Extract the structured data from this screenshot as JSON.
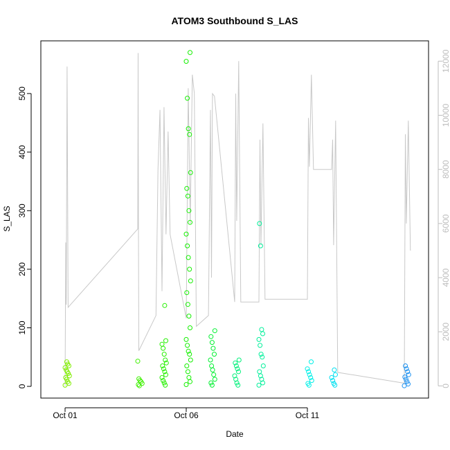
{
  "chart_data": {
    "type": "scatter",
    "title": "ATOM3 Southbound S_LAS",
    "xlabel": "Date",
    "ylabel": "S_LAS",
    "x_axis_type": "date",
    "x_range": [
      "2019-09-30",
      "2019-10-16"
    ],
    "ylim": [
      -20,
      590
    ],
    "y_ticks": [
      0,
      100,
      200,
      300,
      400,
      500
    ],
    "x_ticks": [
      {
        "date": "2019-10-01",
        "label": "Oct 01"
      },
      {
        "date": "2019-10-06",
        "label": "Oct 06"
      },
      {
        "date": "2019-10-11",
        "label": "Oct 11"
      }
    ],
    "secondary_y": {
      "color": "#bdbdbd",
      "ylim": [
        -450,
        12750
      ],
      "ticks": [
        0,
        2000,
        4000,
        6000,
        8000,
        10000,
        12000
      ]
    },
    "grid": false,
    "legend": "none",
    "point_series": [
      {
        "day": "2019-10-01",
        "color": "#80ee00",
        "values": [
          2,
          5,
          8,
          12,
          15,
          18,
          22,
          25,
          28,
          32,
          35,
          38,
          42
        ]
      },
      {
        "day": "2019-10-04",
        "color": "#3ef000",
        "values": [
          1,
          3,
          5,
          8,
          10,
          13,
          43
        ]
      },
      {
        "day": "2019-10-05",
        "color": "#25f000",
        "values": [
          2,
          6,
          10,
          15,
          20,
          25,
          30,
          35,
          40,
          45,
          55,
          65,
          72,
          78,
          138
        ]
      },
      {
        "day": "2019-10-06",
        "color": "#14f000",
        "values": [
          3,
          8,
          15,
          25,
          35,
          45,
          55,
          60,
          70,
          80,
          100,
          120,
          140,
          160,
          180,
          200,
          220,
          240,
          260,
          280,
          300,
          325,
          338,
          365,
          430,
          440,
          492,
          555,
          570
        ]
      },
      {
        "day": "2019-10-07",
        "color": "#00f030",
        "values": [
          2,
          6,
          12,
          20,
          28,
          35,
          45,
          55,
          65,
          75,
          85,
          95
        ]
      },
      {
        "day": "2019-10-08",
        "color": "#00f07a",
        "values": [
          2,
          6,
          12,
          18,
          25,
          30,
          35,
          40,
          45
        ]
      },
      {
        "day": "2019-10-09",
        "color": "#00f09a",
        "values": [
          2,
          6,
          12,
          18,
          25,
          35,
          50,
          55,
          70,
          80,
          90,
          97,
          240,
          278
        ]
      },
      {
        "day": "2019-10-11",
        "color": "#00f0e8",
        "values": [
          2,
          5,
          10,
          15,
          20,
          25,
          30,
          42
        ]
      },
      {
        "day": "2019-10-12",
        "color": "#00e0f0",
        "values": [
          2,
          5,
          10,
          15,
          20,
          28
        ]
      },
      {
        "day": "2019-10-15",
        "color": "#1a90f0",
        "values": [
          1,
          4,
          8,
          12,
          16,
          20,
          25,
          30,
          35
        ]
      }
    ],
    "line_series": {
      "axis": "secondary",
      "color": "#c8c8c8",
      "points": [
        [
          "2019-10-01T00:00",
          0
        ],
        [
          "2019-10-01T00:40",
          5300
        ],
        [
          "2019-10-01T01:10",
          3000
        ],
        [
          "2019-10-01T02:00",
          11800
        ],
        [
          "2019-10-01T03:00",
          2900
        ],
        [
          "2019-10-04T00:00",
          5800
        ],
        [
          "2019-10-04T00:20",
          12300
        ],
        [
          "2019-10-04T00:40",
          5700
        ],
        [
          "2019-10-04T01:00",
          1300
        ],
        [
          "2019-10-04T18:00",
          2600
        ],
        [
          "2019-10-04T20:00",
          8000
        ],
        [
          "2019-10-04T22:00",
          10200
        ],
        [
          "2019-10-05T00:00",
          3500
        ],
        [
          "2019-10-05T02:00",
          10300
        ],
        [
          "2019-10-05T04:00",
          5600
        ],
        [
          "2019-10-05T06:00",
          9400
        ],
        [
          "2019-10-05T08:00",
          5600
        ],
        [
          "2019-10-06T00:00",
          2500
        ],
        [
          "2019-10-06T02:00",
          11000
        ],
        [
          "2019-10-06T04:00",
          6000
        ],
        [
          "2019-10-06T06:00",
          11500
        ],
        [
          "2019-10-06T08:00",
          10800
        ],
        [
          "2019-10-06T10:00",
          2200
        ],
        [
          "2019-10-06T22:00",
          2600
        ],
        [
          "2019-10-07T00:00",
          10200
        ],
        [
          "2019-10-07T01:00",
          4000
        ],
        [
          "2019-10-07T02:00",
          10800
        ],
        [
          "2019-10-07T04:00",
          10700
        ],
        [
          "2019-10-08T00:00",
          3100
        ],
        [
          "2019-10-08T01:00",
          10800
        ],
        [
          "2019-10-08T02:00",
          6100
        ],
        [
          "2019-10-08T04:00",
          12000
        ],
        [
          "2019-10-08T06:00",
          3100
        ],
        [
          "2019-10-09T00:00",
          3100
        ],
        [
          "2019-10-09T01:00",
          9100
        ],
        [
          "2019-10-09T02:00",
          5200
        ],
        [
          "2019-10-09T04:00",
          9700
        ],
        [
          "2019-10-09T06:00",
          3200
        ],
        [
          "2019-10-11T00:00",
          3200
        ],
        [
          "2019-10-11T01:00",
          9900
        ],
        [
          "2019-10-11T02:00",
          8100
        ],
        [
          "2019-10-11T04:00",
          11500
        ],
        [
          "2019-10-11T06:00",
          8000
        ],
        [
          "2019-10-12T00:00",
          8000
        ],
        [
          "2019-10-12T01:00",
          9100
        ],
        [
          "2019-10-12T02:00",
          5200
        ],
        [
          "2019-10-12T04:00",
          9800
        ],
        [
          "2019-10-12T06:00",
          500
        ],
        [
          "2019-10-15T00:00",
          100
        ],
        [
          "2019-10-15T01:00",
          9300
        ],
        [
          "2019-10-15T02:00",
          6000
        ],
        [
          "2019-10-15T04:00",
          9800
        ],
        [
          "2019-10-15T06:00",
          5000
        ]
      ]
    }
  }
}
